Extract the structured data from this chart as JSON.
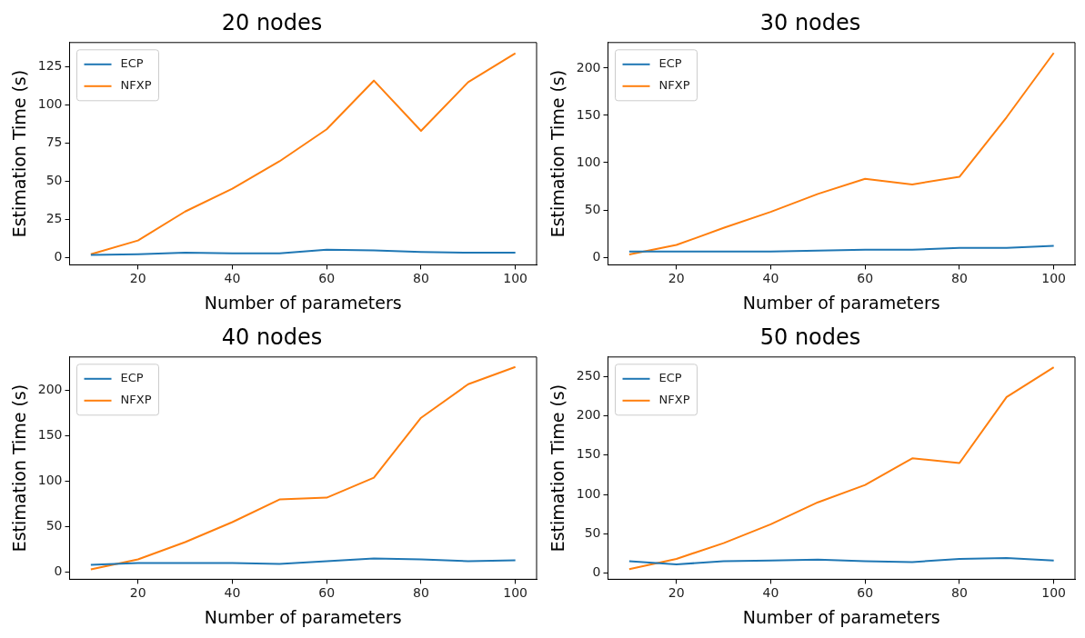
{
  "chart_data": [
    {
      "type": "line",
      "title": "20 nodes",
      "xlabel": "Number of parameters",
      "ylabel": "Estimation Time (s)",
      "x": [
        10,
        20,
        30,
        40,
        50,
        60,
        70,
        80,
        90,
        100
      ],
      "xlim": [
        5.5,
        104.5
      ],
      "xticks": [
        20,
        40,
        60,
        80,
        100
      ],
      "ylim": [
        -5,
        141
      ],
      "yticks": [
        0,
        25,
        50,
        75,
        100,
        125
      ],
      "legend": "top left",
      "grid": false,
      "marker": "none",
      "series": [
        {
          "name": "ECP",
          "color": "#1f77b4",
          "values": [
            1.5,
            2,
            3,
            2.5,
            2.5,
            5,
            4.5,
            3.5,
            3,
            3
          ]
        },
        {
          "name": "NFXP",
          "color": "#ff7f0e",
          "values": [
            2,
            11,
            30,
            45,
            63,
            84,
            116,
            83,
            115,
            134
          ]
        }
      ]
    },
    {
      "type": "line",
      "title": "30 nodes",
      "xlabel": "Number of parameters",
      "ylabel": "Estimation Time (s)",
      "x": [
        10,
        20,
        30,
        40,
        50,
        60,
        70,
        80,
        90,
        100
      ],
      "xlim": [
        5.5,
        104.5
      ],
      "xticks": [
        20,
        40,
        60,
        80,
        100
      ],
      "ylim": [
        -8,
        227
      ],
      "yticks": [
        0,
        50,
        100,
        150,
        200
      ],
      "legend": "top left",
      "grid": false,
      "marker": "none",
      "series": [
        {
          "name": "ECP",
          "color": "#1f77b4",
          "values": [
            6,
            6,
            6,
            6,
            7,
            8,
            8,
            10,
            10,
            12
          ]
        },
        {
          "name": "NFXP",
          "color": "#ff7f0e",
          "values": [
            3,
            13,
            31,
            48,
            67,
            83,
            77,
            85,
            148,
            216
          ]
        }
      ]
    },
    {
      "type": "line",
      "title": "40 nodes",
      "xlabel": "Number of parameters",
      "ylabel": "Estimation Time (s)",
      "x": [
        10,
        20,
        30,
        40,
        50,
        60,
        70,
        80,
        90,
        100
      ],
      "xlim": [
        5.5,
        104.5
      ],
      "xticks": [
        20,
        40,
        60,
        80,
        100
      ],
      "ylim": [
        -8,
        237
      ],
      "yticks": [
        0,
        50,
        100,
        150,
        200
      ],
      "legend": "top left",
      "grid": false,
      "marker": "none",
      "series": [
        {
          "name": "ECP",
          "color": "#1f77b4",
          "values": [
            8,
            10,
            10,
            10,
            9,
            12,
            15,
            14,
            12,
            13
          ]
        },
        {
          "name": "NFXP",
          "color": "#ff7f0e",
          "values": [
            3,
            14,
            33,
            55,
            80,
            82,
            104,
            170,
            207,
            226
          ]
        }
      ]
    },
    {
      "type": "line",
      "title": "50 nodes",
      "xlabel": "Number of parameters",
      "ylabel": "Estimation Time (s)",
      "x": [
        10,
        20,
        30,
        40,
        50,
        60,
        70,
        80,
        90,
        100
      ],
      "xlim": [
        5.5,
        104.5
      ],
      "xticks": [
        20,
        40,
        60,
        80,
        100
      ],
      "ylim": [
        -8,
        275
      ],
      "yticks": [
        0,
        50,
        100,
        150,
        200,
        250
      ],
      "legend": "top left",
      "grid": false,
      "marker": "none",
      "series": [
        {
          "name": "ECP",
          "color": "#1f77b4",
          "values": [
            15,
            11,
            15,
            16,
            17,
            15,
            14,
            18,
            19,
            16
          ]
        },
        {
          "name": "NFXP",
          "color": "#ff7f0e",
          "values": [
            5,
            18,
            38,
            62,
            90,
            112,
            146,
            140,
            224,
            262
          ]
        }
      ]
    }
  ]
}
